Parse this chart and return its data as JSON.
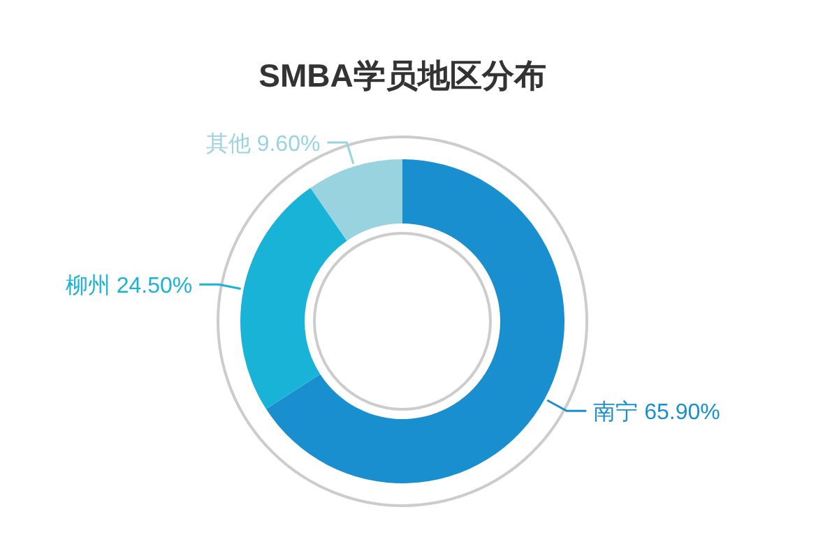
{
  "chart_data": {
    "type": "donut",
    "title": "SMBA学员地区分布",
    "categories": [
      "南宁",
      "柳州",
      "其他"
    ],
    "values": [
      65.9,
      24.5,
      9.6
    ],
    "colors": [
      "#1a8fd0",
      "#1ab3d8",
      "#99d3e0"
    ],
    "value_labels": [
      "65.90%",
      "24.50%",
      "9.60%"
    ]
  }
}
